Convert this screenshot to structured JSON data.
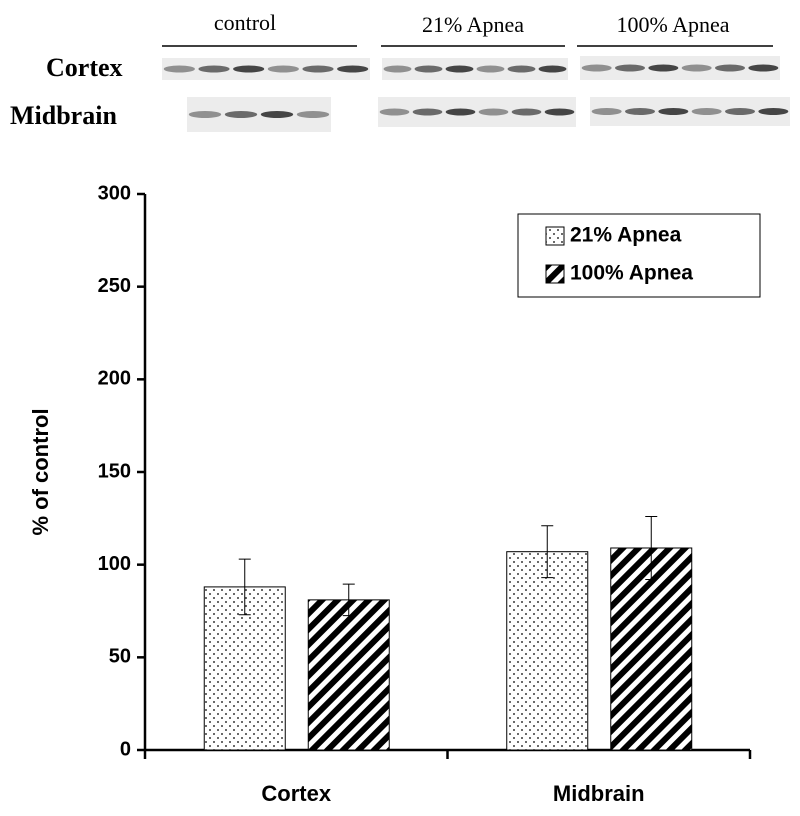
{
  "blot": {
    "groups": [
      "control",
      "21% Apnea",
      "100% Apnea"
    ],
    "rows": [
      "Cortex",
      "Midbrain"
    ]
  },
  "chart_data": {
    "type": "bar",
    "ylabel": "% of control",
    "categories": [
      "Cortex",
      "Midbrain"
    ],
    "series": [
      {
        "name": "21% Apnea",
        "color": "#000000",
        "pattern": "dots",
        "values": [
          88,
          107
        ],
        "errors": [
          15,
          14
        ]
      },
      {
        "name": "100% Apnea",
        "color": "#000000",
        "pattern": "hatch",
        "values": [
          81,
          109
        ],
        "errors": [
          8.5,
          17
        ]
      }
    ],
    "ylim": [
      0,
      300
    ],
    "yticks": [
      0,
      50,
      100,
      150,
      200,
      250,
      300
    ],
    "legend": "upper right",
    "grid": false
  }
}
